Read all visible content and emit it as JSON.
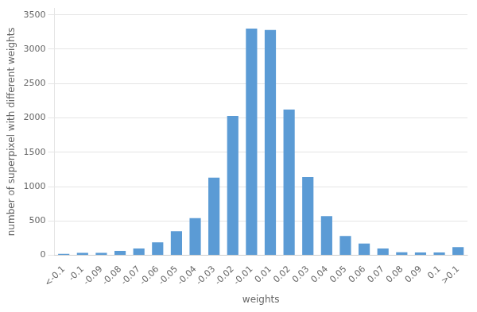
{
  "chart_data": {
    "type": "bar",
    "categories": [
      "<-0.1",
      "-0.1",
      "-0.09",
      "-0.08",
      "-0.07",
      "-0.06",
      "-0.05",
      "-0.04",
      "-0.03",
      "-0.02",
      "-0.01",
      "0.01",
      "0.02",
      "0.03",
      "0.04",
      "0.05",
      "0.06",
      "0.07",
      "0.08",
      "0.09",
      "0.1",
      ">0.1"
    ],
    "values": [
      20,
      35,
      35,
      65,
      100,
      190,
      350,
      540,
      1130,
      2030,
      3300,
      3280,
      2120,
      1140,
      570,
      280,
      170,
      100,
      45,
      40,
      40,
      120
    ],
    "color": "#5b9bd5",
    "xlabel": "weights",
    "ylabel": "number of superpixel with different weights",
    "ylim": [
      0,
      3600
    ],
    "yticks": [
      0,
      500,
      1000,
      1500,
      2000,
      2500,
      3000,
      3500
    ],
    "grid": true
  }
}
